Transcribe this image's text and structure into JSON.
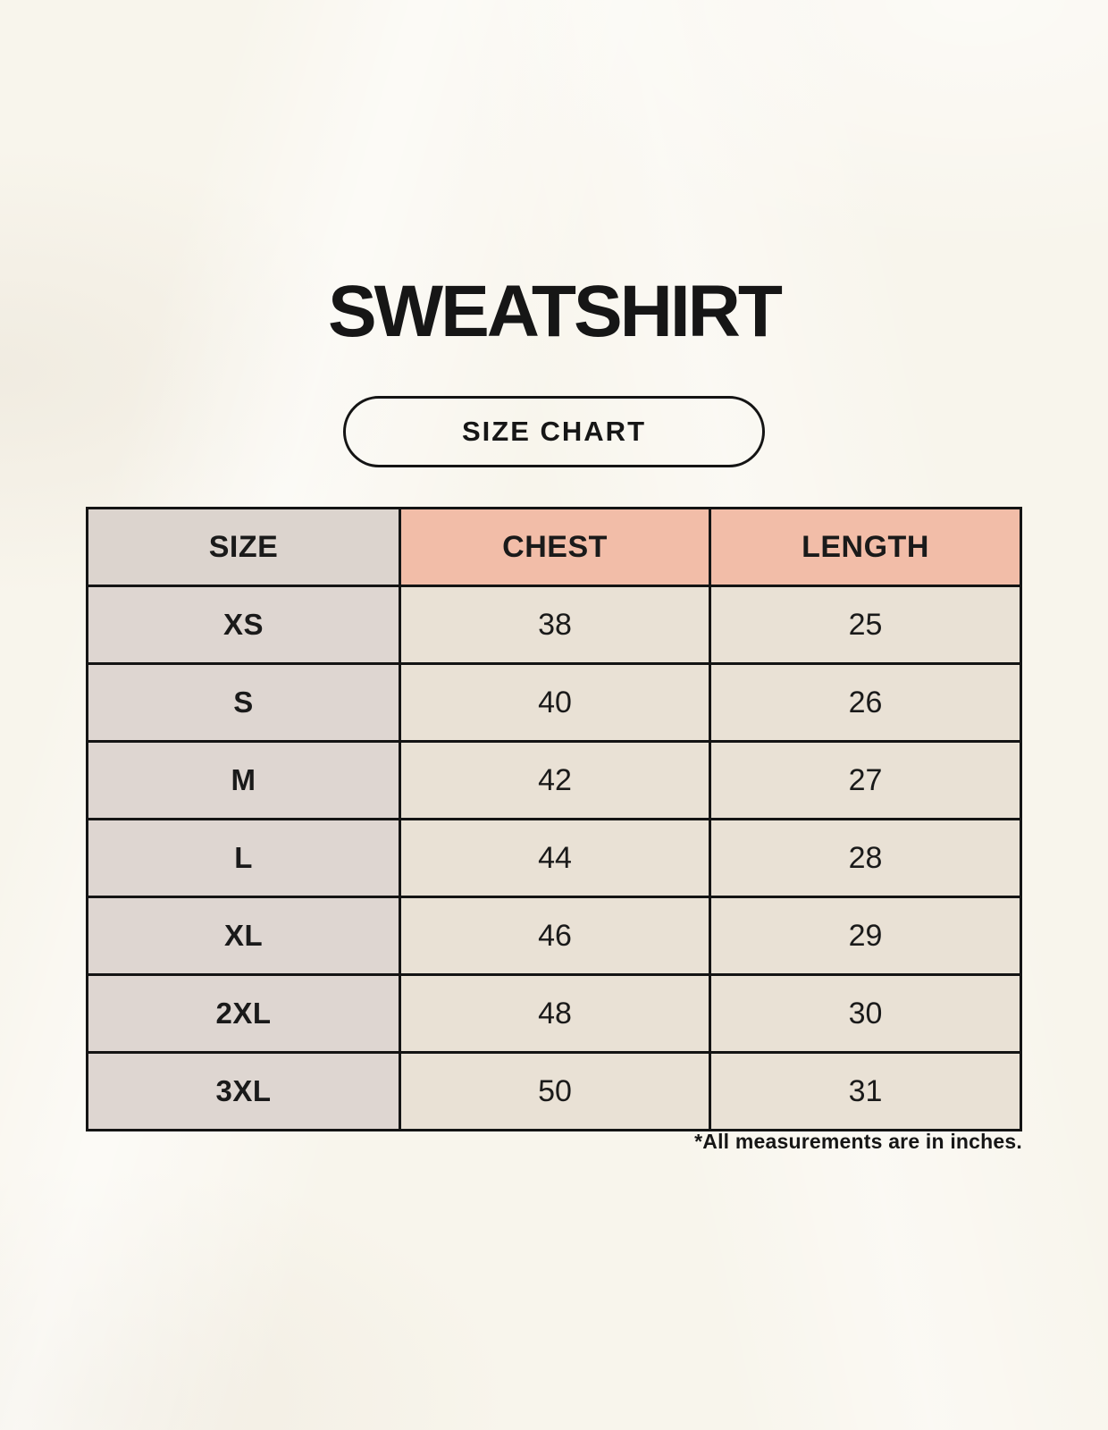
{
  "page": {
    "title": "SWEATSHIRT",
    "badge": "SIZE CHART",
    "footnote": "*All measurements are in inches."
  },
  "colors": {
    "background": "#F8F5EC",
    "table_border": "#141414",
    "text": "#1A1A1A",
    "size_column_header_bg": "#DCD4CE",
    "size_column_bg": "#DED6D1",
    "measure_header_bg": "#F2BDA8",
    "value_cell_bg": "#E9E1D5"
  },
  "chart_data": {
    "type": "table",
    "title": "SWEATSHIRT",
    "columns": [
      "SIZE",
      "CHEST",
      "LENGTH"
    ],
    "rows": [
      {
        "size": "XS",
        "chest": "38",
        "length": "25"
      },
      {
        "size": "S",
        "chest": "40",
        "length": "26"
      },
      {
        "size": "M",
        "chest": "42",
        "length": "27"
      },
      {
        "size": "L",
        "chest": "44",
        "length": "28"
      },
      {
        "size": "XL",
        "chest": "46",
        "length": "29"
      },
      {
        "size": "2XL",
        "chest": "48",
        "length": "30"
      },
      {
        "size": "3XL",
        "chest": "50",
        "length": "31"
      }
    ],
    "units": "inches"
  }
}
